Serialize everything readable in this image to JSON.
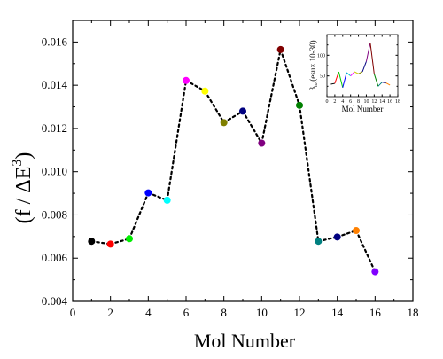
{
  "chart_data": [
    {
      "type": "scatter",
      "title": "",
      "xlabel": "Mol Number",
      "ylabel": "(f / ΔE³)",
      "ylabel_parts": [
        "(f / ",
        "ΔE",
        "3",
        ")"
      ],
      "xlim": [
        0,
        18
      ],
      "ylim": [
        0.004,
        0.017
      ],
      "xticks": [
        0,
        2,
        4,
        6,
        8,
        10,
        12,
        14,
        16,
        18
      ],
      "xtick_labels": [
        "0",
        "2",
        "4",
        "6",
        "8",
        "10",
        "12",
        "14",
        "16",
        "18"
      ],
      "yticks": [
        0.004,
        0.006,
        0.008,
        0.01,
        0.012,
        0.014,
        0.016
      ],
      "ytick_labels": [
        "0.004",
        "0.006",
        "0.008",
        "0.010",
        "0.012",
        "0.014",
        "0.016"
      ],
      "connector": "dotted",
      "grid": false,
      "x": [
        1,
        2,
        3,
        4,
        5,
        6,
        7,
        8,
        9,
        10,
        11,
        12,
        13,
        14,
        15,
        16
      ],
      "y": [
        0.00678,
        0.00665,
        0.0069,
        0.00902,
        0.00868,
        0.01422,
        0.01373,
        0.01227,
        0.0128,
        0.01132,
        0.01565,
        0.01307,
        0.00678,
        0.00698,
        0.00728,
        0.00537
      ],
      "colors": [
        "#000000",
        "#ff0000",
        "#00ee00",
        "#0000ff",
        "#00ffff",
        "#ff00ff",
        "#ffff00",
        "#808000",
        "#000080",
        "#800080",
        "#800000",
        "#008000",
        "#008080",
        "#000080",
        "#ff8000",
        "#8000ff"
      ]
    },
    {
      "type": "line",
      "title": "",
      "xlabel": "Mol Number",
      "ylabel_parts": [
        "β",
        "tot",
        "(esu× 10-30)"
      ],
      "xlim": [
        0,
        18
      ],
      "ylim": [
        0,
        150
      ],
      "xticks": [
        0,
        2,
        4,
        6,
        8,
        10,
        12,
        14,
        16,
        18
      ],
      "xtick_labels": [
        "0",
        "2",
        "4",
        "6",
        "8",
        "10",
        "12",
        "14",
        "16",
        "18"
      ],
      "yticks": [
        50,
        100
      ],
      "ytick_labels": [
        "50",
        "100"
      ],
      "x": [
        1,
        2,
        3,
        4,
        5,
        6,
        7,
        8,
        9,
        10,
        11,
        12,
        13,
        14,
        15,
        16
      ],
      "y": [
        30,
        32,
        60,
        22,
        58,
        50,
        60,
        55,
        60,
        85,
        130,
        55,
        25,
        35,
        33,
        28
      ],
      "colors": [
        "#000000",
        "#ff0000",
        "#00cc00",
        "#0000ff",
        "#00cccc",
        "#ff00ff",
        "#cccc00",
        "#808000",
        "#000080",
        "#800080",
        "#800000",
        "#008000",
        "#008080",
        "#000080",
        "#ff8000",
        "#8000ff"
      ]
    }
  ]
}
